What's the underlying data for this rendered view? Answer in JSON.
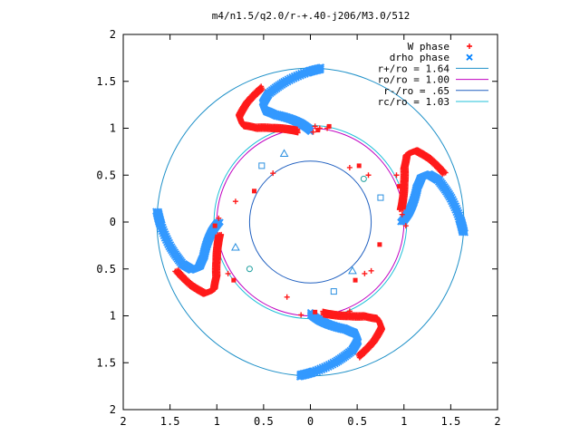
{
  "chart_data": {
    "type": "scatter",
    "title": "m4/n1.5/q2.0/r-+.40-j206/M3.0/512",
    "xlabel": "",
    "ylabel": "",
    "xlim": [
      -2,
      2
    ],
    "ylim": [
      -2,
      2
    ],
    "x_ticks": [
      -2,
      -1.5,
      -1,
      -0.5,
      0,
      0.5,
      1,
      1.5,
      2
    ],
    "x_tick_labels": [
      "2",
      "1.5",
      "1",
      "0.5",
      "0",
      "0.5",
      "1",
      "1.5",
      "2"
    ],
    "y_ticks": [
      -2,
      -1.5,
      -1,
      -0.5,
      0,
      0.5,
      1,
      1.5,
      2
    ],
    "y_tick_labels": [
      "2",
      "1.5",
      "1",
      "0.5",
      "0",
      "0.5",
      "1",
      "1.5",
      "2"
    ],
    "grid": false,
    "legend_position": "top-right",
    "legend": [
      {
        "label": "W phase",
        "kind": "point",
        "marker": "+",
        "color": "#ff0000"
      },
      {
        "label": "drho phase",
        "kind": "point",
        "marker": "x",
        "color": "#0080ff"
      },
      {
        "label": "r+/ro = 1.64",
        "kind": "line",
        "color": "#1e90c8"
      },
      {
        "label": "ro/ro = 1.00",
        "kind": "line",
        "color": "#c000c0"
      },
      {
        "label": "r-/ro = .65",
        "kind": "line",
        "color": "#2060c0"
      },
      {
        "label": "rc/ro = 1.03",
        "kind": "line",
        "color": "#20c0d8"
      }
    ],
    "circles": [
      {
        "r": 1.64,
        "color": "#1e90c8"
      },
      {
        "r": 1.0,
        "color": "#c000c0"
      },
      {
        "r": 0.65,
        "color": "#2060c0"
      },
      {
        "r": 1.03,
        "color": "#20c0d8"
      }
    ],
    "spirals": {
      "arms": 4,
      "drho": {
        "color": "#3399ff",
        "rotation_deg": 0,
        "r": [
          0.98,
          1.05,
          1.12,
          1.2,
          1.28,
          1.36,
          1.44,
          1.52,
          1.6,
          1.64
        ],
        "theta_deg": [
          90,
          95,
          101,
          108,
          112,
          112,
          108,
          100,
          91,
          86
        ]
      },
      "w": {
        "color": "#ff1a1a",
        "rotation_deg": 8,
        "r": [
          0.98,
          1.02,
          1.08,
          1.16,
          1.26,
          1.36,
          1.44,
          1.52
        ],
        "theta_deg": [
          90,
          96,
          104,
          112,
          117,
          116,
          110,
          102
        ]
      }
    },
    "extra_points": {
      "w": [
        [
          0.08,
          0.98
        ],
        [
          0.05,
          1.02
        ],
        [
          0.1,
          1.0
        ],
        [
          0.2,
          1.02
        ],
        [
          0.03,
          0.96
        ],
        [
          -0.4,
          0.52
        ],
        [
          -0.6,
          0.33
        ],
        [
          -0.8,
          0.22
        ],
        [
          -0.98,
          0.04
        ],
        [
          -1.02,
          -0.04
        ],
        [
          -1.0,
          -0.35
        ],
        [
          -0.88,
          -0.55
        ],
        [
          -0.82,
          -0.62
        ],
        [
          -0.25,
          -0.8
        ],
        [
          -0.1,
          -0.99
        ],
        [
          0.05,
          -0.96
        ],
        [
          0.38,
          -1.0
        ],
        [
          0.42,
          -0.95
        ],
        [
          0.48,
          -0.62
        ],
        [
          0.58,
          -0.55
        ],
        [
          0.65,
          -0.52
        ],
        [
          0.74,
          -0.24
        ],
        [
          1.02,
          -0.04
        ],
        [
          0.98,
          0.08
        ],
        [
          0.95,
          0.38
        ],
        [
          0.92,
          0.5
        ],
        [
          0.62,
          0.5
        ],
        [
          0.52,
          0.6
        ],
        [
          0.42,
          0.58
        ],
        [
          0.18,
          1.0
        ]
      ],
      "drho": [
        [
          -0.52,
          0.6
        ],
        [
          -0.28,
          0.73
        ],
        [
          0.57,
          0.46
        ],
        [
          0.75,
          0.26
        ],
        [
          -0.8,
          -0.27
        ],
        [
          -0.65,
          -0.5
        ],
        [
          0.25,
          -0.74
        ],
        [
          0.45,
          -0.52
        ]
      ]
    }
  }
}
